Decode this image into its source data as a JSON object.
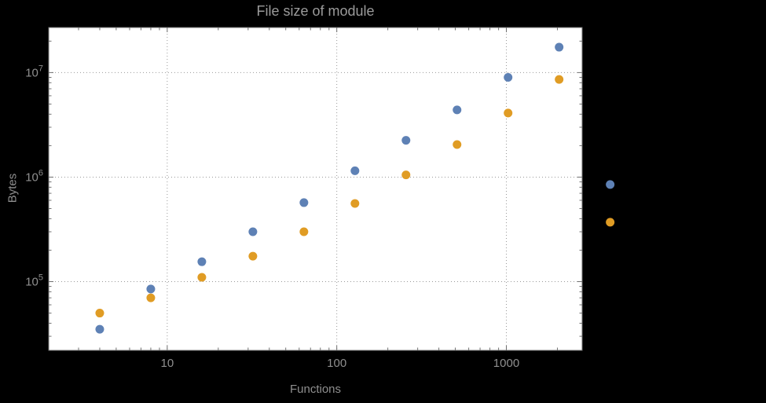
{
  "style": {
    "background": "#000000",
    "plot_background": "#ffffff",
    "frame_color": "#6f6f6f",
    "grid_color": "#999999",
    "tick_text_color": "#8f8f8f",
    "title_color": "#9b9b9b",
    "series1_color": "#5e81b5",
    "series2_color": "#e09c24"
  },
  "chart_data": {
    "type": "scatter",
    "title": "File size of module",
    "xlabel": "Functions",
    "ylabel": "Bytes",
    "x_scale": "log",
    "y_scale": "log",
    "xlim": [
      2,
      2800
    ],
    "ylim": [
      22000,
      27000000
    ],
    "x_ticks": [
      10,
      100,
      1000
    ],
    "x_tick_labels": [
      "10",
      "100",
      "1000"
    ],
    "y_ticks": [
      100000,
      1000000,
      10000000
    ],
    "y_tick_exponents": [
      5,
      6,
      7
    ],
    "grid": "dotted lines at major ticks",
    "legend": "none",
    "x": [
      4,
      8,
      16,
      32,
      64,
      128,
      256,
      512,
      1024,
      2048,
      4096
    ],
    "series": [
      {
        "name": "blue",
        "color": "#5e81b5",
        "values": [
          35000,
          85000,
          155000,
          300000,
          570000,
          1150000,
          2250000,
          4400000,
          9000000,
          17500000,
          850000
        ]
      },
      {
        "name": "orange",
        "color": "#e09c24",
        "values": [
          50000,
          70000,
          110000,
          175000,
          300000,
          560000,
          1050000,
          2050000,
          4100000,
          8600000,
          370000
        ]
      }
    ],
    "note": "The last point of each series (x=4096) is drawn outside the right edge of the plot frame."
  }
}
